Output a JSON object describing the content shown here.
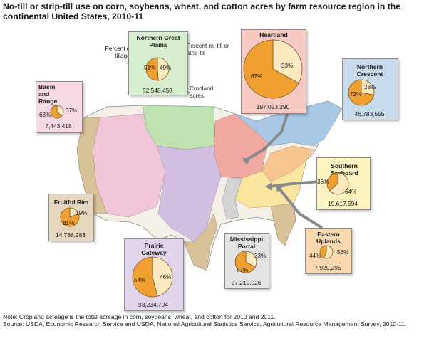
{
  "title": "No-till or strip-till use on corn, soybeans, wheat, and cotton acres by farm resource region in the continental United States, 2010-11",
  "colors": {
    "other_tillage": "#f0a030",
    "notill": "#fde9bf",
    "pie_border": "#7a5a2a"
  },
  "callouts": {
    "other": "Percent other tillage",
    "notill": "Percent no-till or strip-till",
    "cropland": "Cropland acres"
  },
  "regions": [
    {
      "name": "Northern Great Plains",
      "other_pct": "51%",
      "notill_pct": "49%",
      "acres": "52,548,458",
      "box_color": "#d8efcf"
    },
    {
      "name": "Heartland",
      "other_pct": "67%",
      "notill_pct": "33%",
      "acres": "197,023,290",
      "box_color": "#f6c9c2"
    },
    {
      "name": "Northern Crescent",
      "other_pct": "72%",
      "notill_pct": "28%",
      "acres": "46,783,555",
      "box_color": "#c7dbec"
    },
    {
      "name": "Basin and Range",
      "other_pct": "63%",
      "notill_pct": "37%",
      "acres": "7,443,418",
      "box_color": "#f7d9e5"
    },
    {
      "name": "Southern Seaboard",
      "other_pct": "36%",
      "notill_pct": "64%",
      "acres": "19,617,594",
      "box_color": "#fdf3c0"
    },
    {
      "name": "Fruitful Rim",
      "other_pct": "81%",
      "notill_pct": "19%",
      "acres": "14,786,283",
      "box_color": "#e6d8bf"
    },
    {
      "name": "Eastern Uplands",
      "other_pct": "44%",
      "notill_pct": "56%",
      "acres": "7,929,295",
      "box_color": "#fbd8b0"
    },
    {
      "name": "Mississippi Portal",
      "other_pct": "67%",
      "notill_pct": "33%",
      "acres": "27,219,026",
      "box_color": "#e3e3e3"
    },
    {
      "name": "Prairie Gateway",
      "other_pct": "54%",
      "notill_pct": "46%",
      "acres": "93,234,704",
      "box_color": "#e1d5ec"
    }
  ],
  "pie_values": [
    0.51,
    0.67,
    0.72,
    0.63,
    0.36,
    0.81,
    0.44,
    0.67,
    0.54
  ],
  "note": "Note: Cropland acreage is the total acreage in corn, soybeans, wheat, and cotton for 2010 and 2011.",
  "source": "Source: USDA, Economic Research Service and USDA, National Agricultural Statistics Service, Agricultural Resource Management Survey, 2010-11."
}
